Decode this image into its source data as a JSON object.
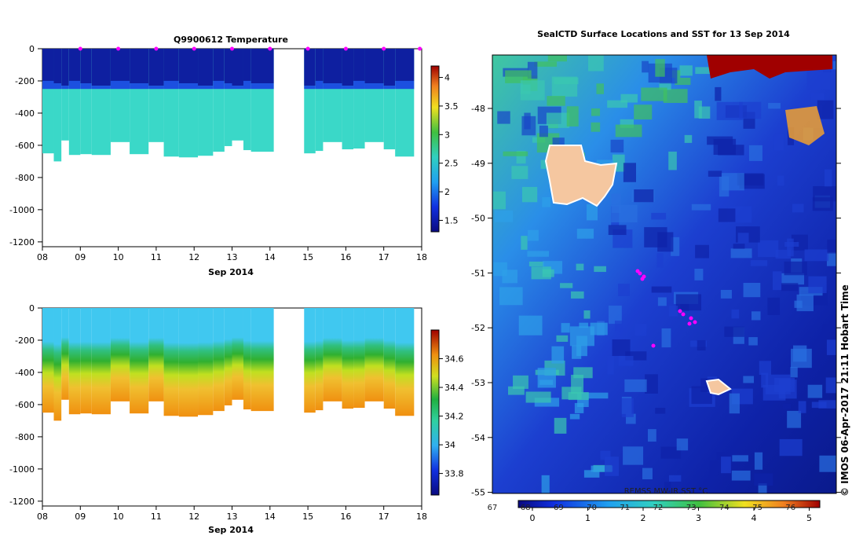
{
  "chart_data": [
    {
      "type": "heatmap",
      "title": "Q9900612  Temperature",
      "xlabel": "Sep 2014",
      "x_tick_labels": [
        "08",
        "09",
        "10",
        "11",
        "12",
        "13",
        "14",
        "15",
        "16",
        "17",
        "18"
      ],
      "ylabel": "",
      "y_tick_labels": [
        "0",
        "-200",
        "-400",
        "-600",
        "-800",
        "-1000",
        "-1200"
      ],
      "ylim": [
        -1230,
        0
      ],
      "colorbar_ticks": [
        "4",
        "3.5",
        "3",
        "2.5",
        "2",
        "1.5"
      ],
      "colorbar_range": [
        1.3,
        4.2
      ],
      "profile_markers_x_days": [
        9,
        10,
        11,
        12,
        13,
        14,
        15,
        16,
        17,
        17.95
      ],
      "profiles": [
        {
          "x": [
            8.0,
            8.3
          ],
          "depth": 650
        },
        {
          "x": [
            8.3,
            8.5
          ],
          "depth": 700
        },
        {
          "x": [
            8.5,
            8.7
          ],
          "depth": 570
        },
        {
          "x": [
            8.7,
            9.0
          ],
          "depth": 660
        },
        {
          "x": [
            9.0,
            9.3
          ],
          "depth": 655
        },
        {
          "x": [
            9.3,
            9.8
          ],
          "depth": 660
        },
        {
          "x": [
            9.8,
            10.3
          ],
          "depth": 580
        },
        {
          "x": [
            10.3,
            10.8
          ],
          "depth": 655
        },
        {
          "x": [
            10.8,
            11.2
          ],
          "depth": 580
        },
        {
          "x": [
            11.2,
            11.6
          ],
          "depth": 670
        },
        {
          "x": [
            11.6,
            12.1
          ],
          "depth": 675
        },
        {
          "x": [
            12.1,
            12.5
          ],
          "depth": 665
        },
        {
          "x": [
            12.5,
            12.8
          ],
          "depth": 640
        },
        {
          "x": [
            12.8,
            13.0
          ],
          "depth": 605
        },
        {
          "x": [
            13.0,
            13.3
          ],
          "depth": 570
        },
        {
          "x": [
            13.3,
            13.5
          ],
          "depth": 630
        },
        {
          "x": [
            13.5,
            14.1
          ],
          "depth": 640
        },
        {
          "x": [
            14.9,
            15.2
          ],
          "depth": 650
        },
        {
          "x": [
            15.2,
            15.4
          ],
          "depth": 635
        },
        {
          "x": [
            15.4,
            15.9
          ],
          "depth": 580
        },
        {
          "x": [
            15.9,
            16.2
          ],
          "depth": 625
        },
        {
          "x": [
            16.2,
            16.5
          ],
          "depth": 620
        },
        {
          "x": [
            16.5,
            17.0
          ],
          "depth": 580
        },
        {
          "x": [
            17.0,
            17.3
          ],
          "depth": 625
        },
        {
          "x": [
            17.3,
            17.8
          ],
          "depth": 670
        }
      ]
    },
    {
      "type": "heatmap",
      "title": "",
      "xlabel": "Sep 2014",
      "x_tick_labels": [
        "08",
        "09",
        "10",
        "11",
        "12",
        "13",
        "14",
        "15",
        "16",
        "17",
        "18"
      ],
      "ylabel": "",
      "y_tick_labels": [
        "0",
        "-200",
        "-400",
        "-600",
        "-800",
        "-1000",
        "-1200"
      ],
      "ylim": [
        -1230,
        0
      ],
      "colorbar_ticks": [
        "34.6",
        "34.4",
        "34.2",
        "34",
        "33.8"
      ],
      "colorbar_range": [
        33.65,
        34.8
      ]
    },
    {
      "type": "heatmap",
      "title": "SealCTD Surface Locations and SST for 13 Sep 2014",
      "xlabel": "",
      "ylabel": "",
      "y_tick_labels": [
        "-48",
        "-49",
        "-50",
        "-51",
        "-52",
        "-53",
        "-54",
        "-55"
      ],
      "colorbar_label": "REMSS MW-IR SST °C",
      "colorbar_ticks_top": [
        "67",
        "68",
        "69",
        "70",
        "71",
        "72",
        "73",
        "74",
        "75",
        "76"
      ],
      "colorbar_ticks_bottom": [
        "0",
        "1",
        "2",
        "3",
        "4",
        "5"
      ],
      "credit": "© IMOS 06-Apr-2017 21:11 Hobart Time",
      "seal_locations": [
        {
          "lon": 70.4,
          "lat": -51.0
        },
        {
          "lon": 70.8,
          "lat": -51.85
        },
        {
          "lon": 70.6,
          "lat": -51.7
        }
      ]
    }
  ],
  "colors": {
    "deep_blue": "#0a1a8c",
    "mid_blue": "#1c3fd0",
    "cyan": "#3ad8c8",
    "marker": "#ff00ff",
    "land": "#f5c7a0",
    "ice": "#a00000"
  }
}
